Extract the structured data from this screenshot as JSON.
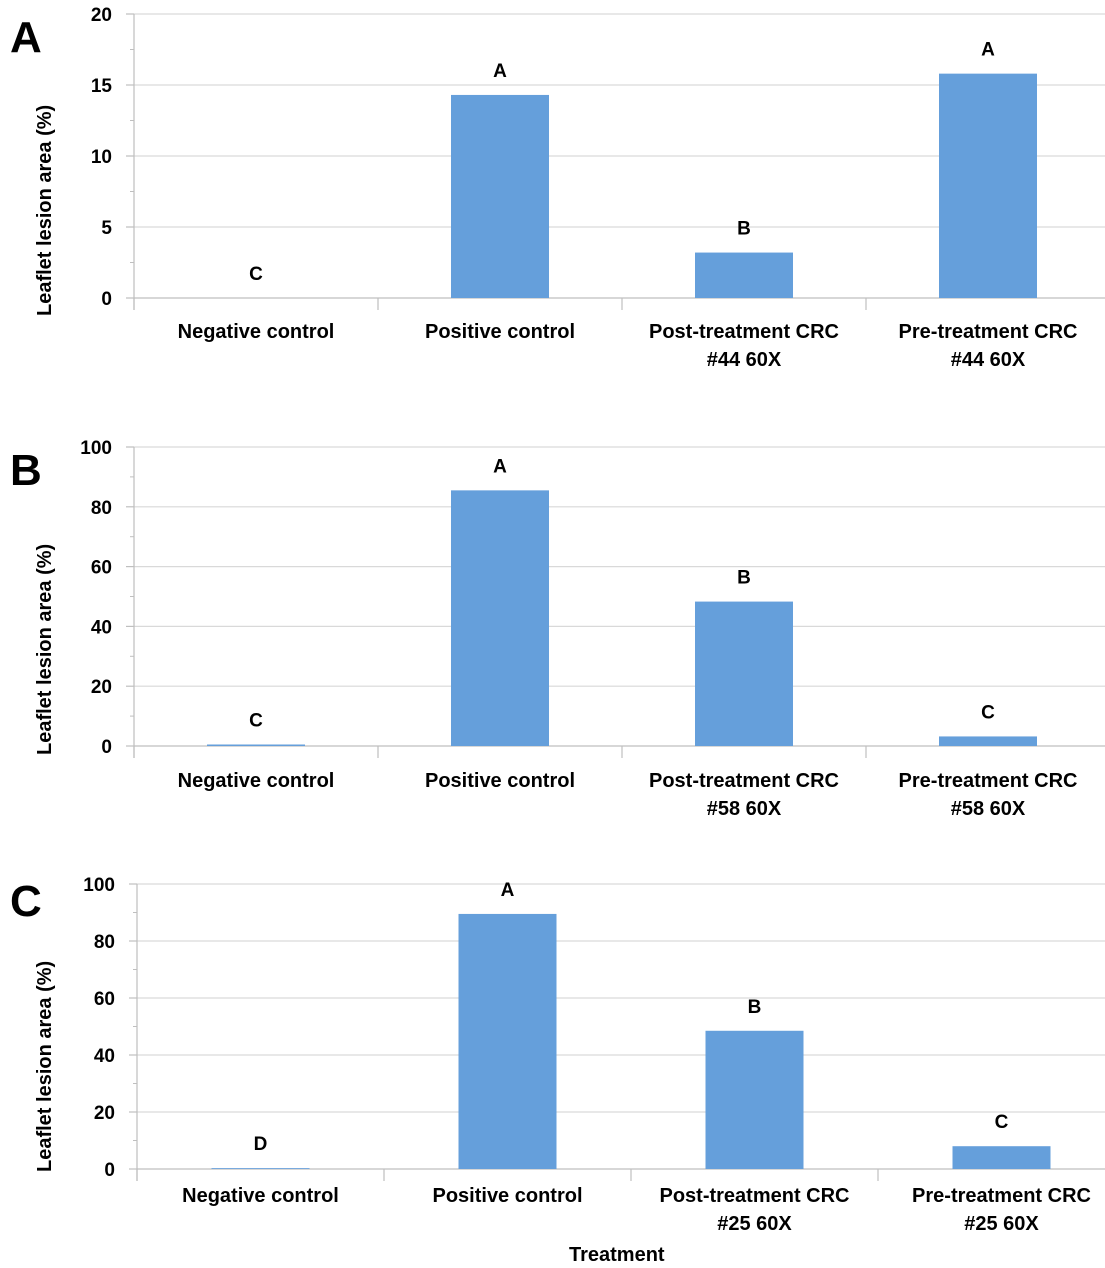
{
  "colors": {
    "bar": "#659FDB",
    "grid": "#D9D9D9",
    "axis": "#BFBFBF"
  },
  "xlabel": "Treatment",
  "chart_data": [
    {
      "type": "bar",
      "panel": "A",
      "ylabel": "Leaflet lesion area (%)",
      "ylim": [
        0,
        20
      ],
      "yticks": [
        0,
        5,
        10,
        15,
        20
      ],
      "categories": [
        "Negative control",
        "Positive control",
        "Post-treatment CRC\n#44 60X",
        "Pre-treatment CRC\n#44 60X"
      ],
      "values": [
        0,
        14.3,
        3.2,
        15.8
      ],
      "significance": [
        "C",
        "A",
        "B",
        "A"
      ],
      "grid": true
    },
    {
      "type": "bar",
      "panel": "B",
      "ylabel": "Leaflet lesion area (%)",
      "ylim": [
        0,
        100
      ],
      "yticks": [
        0,
        20,
        40,
        60,
        80,
        100
      ],
      "categories": [
        "Negative control",
        "Positive control",
        "Post-treatment CRC\n#58 60X",
        "Pre-treatment CRC\n#58 60X"
      ],
      "values": [
        0.5,
        85.5,
        48.3,
        3.2
      ],
      "significance": [
        "C",
        "A",
        "B",
        "C"
      ],
      "grid": true
    },
    {
      "type": "bar",
      "panel": "C",
      "ylabel": "Leaflet lesion area (%)",
      "ylim": [
        0,
        100
      ],
      "yticks": [
        0,
        20,
        40,
        60,
        80,
        100
      ],
      "categories": [
        "Negative control",
        "Positive control",
        "Post-treatment CRC\n#25 60X",
        "Pre-treatment CRC\n#25 60X"
      ],
      "values": [
        0.3,
        89.5,
        48.5,
        8
      ],
      "significance": [
        "D",
        "A",
        "B",
        "C"
      ],
      "grid": true
    }
  ]
}
